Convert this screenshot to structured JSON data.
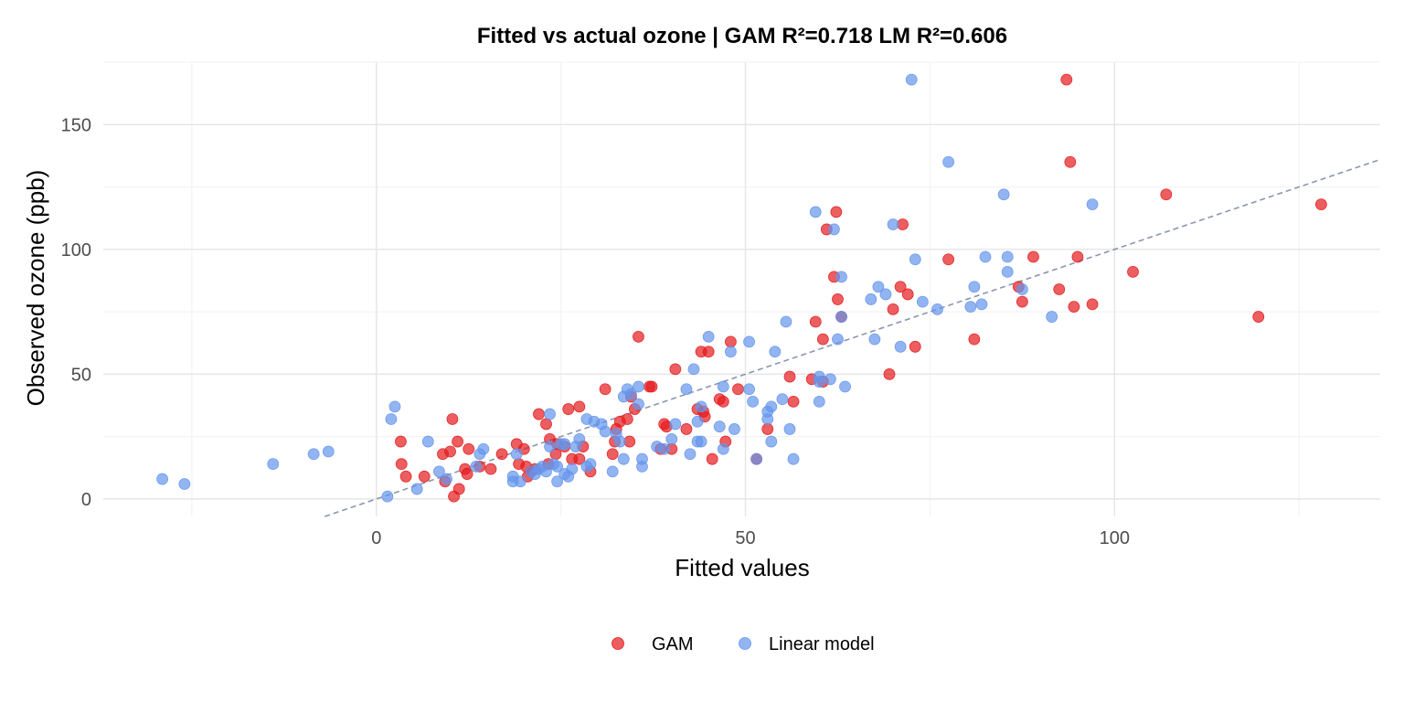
{
  "chart_data": {
    "type": "scatter",
    "title": "Fitted vs actual ozone  |  GAM R²=0.718  LM R²=0.606",
    "xlabel": "Fitted values",
    "ylabel": "Observed ozone (ppb)",
    "xlim": [
      -37,
      136
    ],
    "ylim": [
      -7,
      175
    ],
    "x_ticks": [
      0,
      50,
      100
    ],
    "y_ticks": [
      0,
      50,
      100,
      150
    ],
    "x_tick_labels": [
      "0",
      "50",
      "100"
    ],
    "y_tick_labels": [
      "0",
      "50",
      "100",
      "150"
    ],
    "grid": true,
    "legend_position": "bottom",
    "reference_line": {
      "style": "dashed",
      "color": "#8a95b0",
      "slope": 1,
      "intercept": 0
    },
    "series": [
      {
        "name": "GAM",
        "color": "#e41a1c",
        "points": [
          [
            3.3,
            23
          ],
          [
            3.4,
            14
          ],
          [
            4,
            9
          ],
          [
            6.5,
            9
          ],
          [
            9,
            18
          ],
          [
            9.3,
            7
          ],
          [
            10,
            19
          ],
          [
            10.3,
            32
          ],
          [
            10.5,
            1
          ],
          [
            11,
            23
          ],
          [
            11.2,
            4
          ],
          [
            12,
            12
          ],
          [
            12.3,
            10
          ],
          [
            12.5,
            20
          ],
          [
            14,
            13
          ],
          [
            15.5,
            12
          ],
          [
            17,
            18
          ],
          [
            19,
            22
          ],
          [
            19.3,
            14
          ],
          [
            20,
            20
          ],
          [
            20.3,
            13
          ],
          [
            20.5,
            9
          ],
          [
            21,
            11
          ],
          [
            21.5,
            12
          ],
          [
            22,
            34
          ],
          [
            23,
            30
          ],
          [
            23.3,
            14
          ],
          [
            23.5,
            24
          ],
          [
            24.3,
            18
          ],
          [
            24.5,
            22
          ],
          [
            25.5,
            21
          ],
          [
            26,
            36
          ],
          [
            26.5,
            16
          ],
          [
            27.5,
            16
          ],
          [
            27.5,
            37
          ],
          [
            28,
            21
          ],
          [
            29,
            11
          ],
          [
            31,
            44
          ],
          [
            32,
            18
          ],
          [
            32.3,
            23
          ],
          [
            32.5,
            28
          ],
          [
            33,
            31
          ],
          [
            34,
            32
          ],
          [
            34.3,
            23
          ],
          [
            34.5,
            41
          ],
          [
            35,
            36
          ],
          [
            35.5,
            65
          ],
          [
            37,
            45
          ],
          [
            37.3,
            45
          ],
          [
            38.5,
            20
          ],
          [
            39,
            30
          ],
          [
            39.3,
            29
          ],
          [
            40,
            20
          ],
          [
            40.5,
            52
          ],
          [
            42,
            28
          ],
          [
            43.5,
            36
          ],
          [
            44,
            59
          ],
          [
            44.3,
            35
          ],
          [
            44.5,
            33
          ],
          [
            45,
            59
          ],
          [
            45.5,
            16
          ],
          [
            46.5,
            40
          ],
          [
            47,
            39
          ],
          [
            47.3,
            23
          ],
          [
            48,
            63
          ],
          [
            49,
            44
          ],
          [
            51.5,
            16
          ],
          [
            53,
            28
          ],
          [
            56,
            49
          ],
          [
            56.5,
            39
          ],
          [
            59,
            48
          ],
          [
            59.5,
            71
          ],
          [
            60.5,
            64
          ],
          [
            60.5,
            47
          ],
          [
            61,
            108
          ],
          [
            62,
            89
          ],
          [
            62.3,
            115
          ],
          [
            62.5,
            80
          ],
          [
            63,
            73
          ],
          [
            69.5,
            50
          ],
          [
            70,
            76
          ],
          [
            71,
            85
          ],
          [
            71.3,
            110
          ],
          [
            72,
            82
          ],
          [
            73,
            61
          ],
          [
            77.5,
            96
          ],
          [
            81,
            64
          ],
          [
            87,
            85
          ],
          [
            87.5,
            79
          ],
          [
            89,
            97
          ],
          [
            92.5,
            84
          ],
          [
            93.5,
            168
          ],
          [
            94,
            135
          ],
          [
            94.5,
            77
          ],
          [
            95,
            97
          ],
          [
            97,
            78
          ],
          [
            102.5,
            91
          ],
          [
            107,
            122
          ],
          [
            119.5,
            73
          ],
          [
            128,
            118
          ]
        ]
      },
      {
        "name": "Linear model",
        "color": "#6495ed",
        "points": [
          [
            -29,
            8
          ],
          [
            -26,
            6
          ],
          [
            -14,
            14
          ],
          [
            -8.5,
            18
          ],
          [
            -6.5,
            19
          ],
          [
            1.5,
            1
          ],
          [
            2,
            32
          ],
          [
            2.5,
            37
          ],
          [
            5.5,
            4
          ],
          [
            7,
            23
          ],
          [
            8.5,
            11
          ],
          [
            9.5,
            8
          ],
          [
            13.5,
            13
          ],
          [
            14,
            18
          ],
          [
            14.5,
            20
          ],
          [
            18.5,
            9
          ],
          [
            18.5,
            7
          ],
          [
            19,
            18
          ],
          [
            19.5,
            7
          ],
          [
            21,
            11
          ],
          [
            21.5,
            10
          ],
          [
            22,
            12
          ],
          [
            22.5,
            13
          ],
          [
            23,
            11
          ],
          [
            23.5,
            21
          ],
          [
            23.5,
            34
          ],
          [
            24,
            14
          ],
          [
            24.5,
            13
          ],
          [
            24.5,
            7
          ],
          [
            25,
            22
          ],
          [
            25.5,
            22
          ],
          [
            25.5,
            10
          ],
          [
            26,
            9
          ],
          [
            26.5,
            12
          ],
          [
            27,
            21
          ],
          [
            27.5,
            24
          ],
          [
            28.5,
            32
          ],
          [
            28.5,
            13
          ],
          [
            29,
            14
          ],
          [
            29.5,
            31
          ],
          [
            30.5,
            30
          ],
          [
            31,
            27
          ],
          [
            32,
            11
          ],
          [
            32.5,
            26
          ],
          [
            33,
            23
          ],
          [
            33.5,
            16
          ],
          [
            33.5,
            41
          ],
          [
            34,
            44
          ],
          [
            34.5,
            42
          ],
          [
            35.5,
            38
          ],
          [
            35.5,
            45
          ],
          [
            36,
            13
          ],
          [
            36,
            16
          ],
          [
            38,
            21
          ],
          [
            39,
            20
          ],
          [
            40,
            24
          ],
          [
            40.5,
            30
          ],
          [
            42,
            44
          ],
          [
            42.5,
            18
          ],
          [
            43,
            52
          ],
          [
            43.5,
            23
          ],
          [
            43.5,
            31
          ],
          [
            44,
            37
          ],
          [
            44,
            23
          ],
          [
            45,
            65
          ],
          [
            46.5,
            29
          ],
          [
            47,
            45
          ],
          [
            47,
            20
          ],
          [
            48,
            59
          ],
          [
            48.5,
            28
          ],
          [
            50.5,
            63
          ],
          [
            50.5,
            44
          ],
          [
            51,
            39
          ],
          [
            51.5,
            16
          ],
          [
            53,
            32
          ],
          [
            53,
            35
          ],
          [
            53.5,
            37
          ],
          [
            53.5,
            23
          ],
          [
            54,
            59
          ],
          [
            55,
            40
          ],
          [
            55.5,
            71
          ],
          [
            56,
            28
          ],
          [
            56.5,
            16
          ],
          [
            60,
            49
          ],
          [
            60,
            39
          ],
          [
            60,
            47
          ],
          [
            61.5,
            48
          ],
          [
            62,
            108
          ],
          [
            62.5,
            64
          ],
          [
            63,
            89
          ],
          [
            63,
            73
          ],
          [
            67,
            80
          ],
          [
            67.5,
            64
          ],
          [
            68,
            85
          ],
          [
            69,
            82
          ],
          [
            70,
            110
          ],
          [
            71,
            61
          ],
          [
            72.5,
            168
          ],
          [
            73,
            96
          ],
          [
            74,
            79
          ],
          [
            76,
            76
          ],
          [
            77.5,
            135
          ],
          [
            80.5,
            77
          ],
          [
            81,
            85
          ],
          [
            82,
            78
          ],
          [
            82.5,
            97
          ],
          [
            85,
            122
          ],
          [
            85.5,
            97
          ],
          [
            85.5,
            91
          ],
          [
            87.5,
            84
          ],
          [
            91.5,
            73
          ],
          [
            97,
            118
          ],
          [
            63.5,
            45
          ],
          [
            59.5,
            115
          ]
        ]
      }
    ]
  },
  "legend": {
    "items": [
      {
        "label": "GAM",
        "color": "#e41a1c"
      },
      {
        "label": "Linear model",
        "color": "#6495ed"
      }
    ]
  }
}
